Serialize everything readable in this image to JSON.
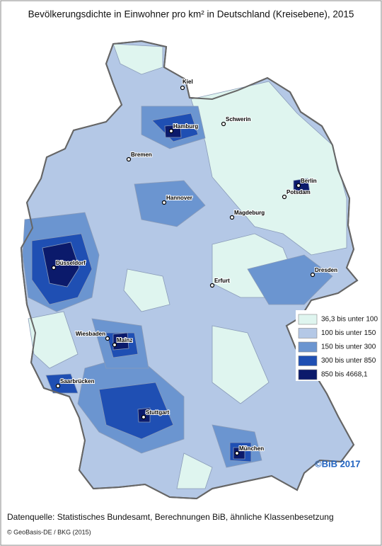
{
  "title": "Bevölkerungsdichte in Einwohner pro km² in Deutschland (Kreisebene), 2015",
  "legend": {
    "items": [
      {
        "label": "36,3 bis unter 100",
        "color": "#dff5ef"
      },
      {
        "label": "100 bis unter 150",
        "color": "#b4c8e6"
      },
      {
        "label": "150 bis unter 300",
        "color": "#6b95d0"
      },
      {
        "label": "300 bis unter 850",
        "color": "#1f4fb3"
      },
      {
        "label": "850 bis 4668,1",
        "color": "#0b1a6b"
      }
    ]
  },
  "cities": [
    "Kiel",
    "Hamburg",
    "Schwerin",
    "Bremen",
    "Berlin",
    "Potsdam",
    "Hannover",
    "Magdeburg",
    "Düsseldorf",
    "Dresden",
    "Erfurt",
    "Wiesbaden",
    "Mainz",
    "Saarbrücken",
    "Stuttgart",
    "München"
  ],
  "credit": "©BiB 2017",
  "source": "Datenquelle: Statistisches Bundesamt, Berechnungen BiB, ähnliche Klassenbesetzung",
  "copyright": "© GeoBasis-DE / BKG (2015)"
}
